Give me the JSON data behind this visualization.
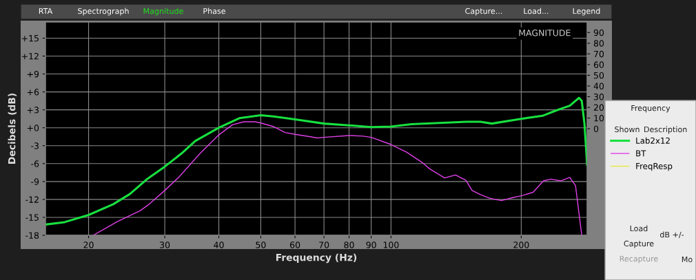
{
  "chart_data": {
    "type": "line",
    "title": "MAGNITUDE",
    "xlabel": "Frequency (Hz)",
    "ylabel": "Decibels (dB)",
    "log": "x",
    "grid": true,
    "legend": "right",
    "line_style": "solid",
    "xlim": [
      15.9,
      284
    ],
    "xticks": [
      20,
      30,
      40,
      50,
      60,
      70,
      80,
      90,
      100,
      200
    ],
    "ylim": [
      -18,
      17.7
    ],
    "yticks": [
      {
        "value": 15,
        "label": "+15"
      },
      {
        "value": 12,
        "label": "+12"
      },
      {
        "value": 9,
        "label": "+9"
      },
      {
        "value": 6,
        "label": "+6"
      },
      {
        "value": 3,
        "label": "+3"
      },
      {
        "value": 0,
        "label": "+0"
      },
      -3,
      -6,
      -9,
      -12,
      -15,
      -18
    ],
    "y2lim": [
      -99.6,
      99.8
    ],
    "y2ticks": [
      0,
      10,
      20,
      30,
      40,
      50,
      60,
      70,
      80,
      90
    ],
    "series": [
      {
        "name": "Lab2x12",
        "color": "#18e040",
        "x": [
          15.9,
          17.6,
          20,
          22.8,
          24.9,
          27.3,
          30,
          32.8,
          35.3,
          40,
          44.6,
          50,
          53.5,
          60,
          70,
          80,
          90,
          100,
          111.5,
          129,
          149.5,
          161,
          171,
          200,
          224,
          241,
          259,
          272,
          276,
          280,
          284
        ],
        "values": [
          -16.2,
          -15.8,
          -14.6,
          -12.8,
          -11.1,
          -8.6,
          -6.5,
          -4.3,
          -2.2,
          0,
          1.6,
          2.1,
          1.9,
          1.4,
          0.7,
          0.4,
          0.1,
          0.2,
          0.6,
          0.8,
          1.0,
          1.0,
          0.7,
          1.5,
          2.0,
          2.9,
          3.7,
          5.0,
          4.5,
          0.7,
          -6.2
        ]
      },
      {
        "name": "BT",
        "color": "#e040e8",
        "x": [
          20.5,
          23.3,
          26.3,
          27.6,
          30,
          32.4,
          36.2,
          40,
          43,
          45.7,
          48.5,
          50,
          53.5,
          56.9,
          60,
          65.1,
          67.5,
          70,
          80,
          86.2,
          90,
          100,
          108.8,
          118.5,
          123,
          133,
          141,
          149,
          154,
          161,
          169,
          180,
          191,
          200,
          213,
          225,
          234,
          247,
          259,
          267,
          276
        ],
        "values": [
          -18,
          -15.7,
          -13.9,
          -12.8,
          -10.5,
          -8.2,
          -4.3,
          -1.2,
          0.5,
          1.0,
          1.0,
          0.8,
          0.2,
          -0.8,
          -1.1,
          -1.5,
          -1.7,
          -1.6,
          -1.3,
          -1.4,
          -1.6,
          -2.8,
          -4.1,
          -5.9,
          -6.9,
          -8.4,
          -7.9,
          -8.8,
          -10.5,
          -11.2,
          -11.8,
          -12.2,
          -11.7,
          -11.4,
          -10.8,
          -8.9,
          -8.6,
          -8.9,
          -8.3,
          -9.7,
          -18
        ]
      },
      {
        "name": "FreqResp",
        "color": "#e8e840"
      }
    ],
    "annotations": [
      "RTA",
      "Spectrograph",
      "Magnitude",
      "Phase",
      "Capture...",
      "Load...",
      "Legend",
      "Frequency",
      "Shown",
      "Description",
      "Load",
      "Capture",
      "Recapture",
      "dB +/-",
      "Mo"
    ]
  }
}
